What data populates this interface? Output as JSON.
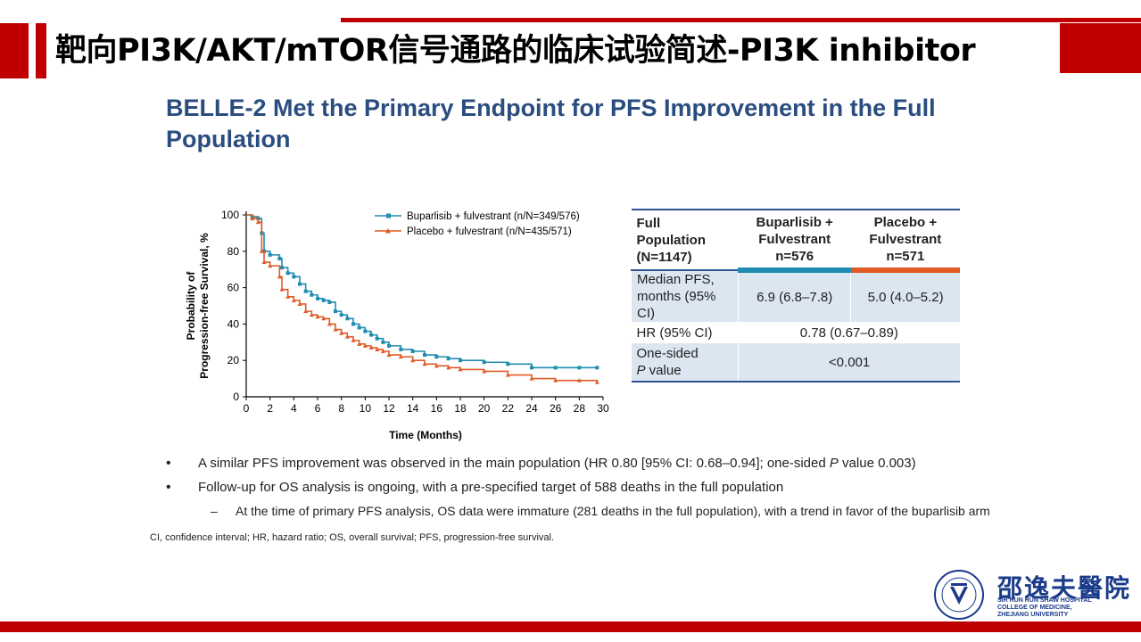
{
  "header": {
    "title": "靶向PI3K/AKT/mTOR信号通路的临床试验简述-PI3K inhibitor"
  },
  "slide": {
    "title": "BELLE-2 Met the Primary Endpoint for PFS Improvement in the Full Population"
  },
  "colors": {
    "brand_red": "#c00000",
    "title_blue": "#2a4d7f",
    "buparlisib": "#1f8db0",
    "placebo": "#e05a26",
    "table_row_blue": "#dce6f1"
  },
  "chart_data": {
    "type": "line",
    "xlabel": "Time (Months)",
    "ylabel_line1": "Probability of",
    "ylabel_line2": "Progression-free Survival, %",
    "xlim": [
      0,
      30
    ],
    "ylim": [
      0,
      100
    ],
    "xticks": [
      0,
      2,
      4,
      6,
      8,
      10,
      12,
      14,
      16,
      18,
      20,
      22,
      24,
      26,
      28,
      30
    ],
    "yticks": [
      0,
      20,
      40,
      60,
      80,
      100
    ],
    "legend_position": "top-right",
    "series": [
      {
        "name": "Buparlisib + fulvestrant (n/N=349/576)",
        "color": "#1f8db0",
        "x": [
          0,
          0.5,
          1,
          1.3,
          1.5,
          2,
          2.8,
          3,
          3.5,
          4,
          4.5,
          5,
          5.5,
          6,
          6.5,
          7,
          7.5,
          8,
          8.5,
          9,
          9.5,
          10,
          10.5,
          11,
          11.5,
          12,
          13,
          14,
          15,
          16,
          17,
          18,
          20,
          22,
          24,
          26,
          28,
          29.5
        ],
        "y": [
          100,
          99,
          98,
          90,
          80,
          78,
          76,
          71,
          68,
          66,
          62,
          58,
          56,
          54,
          53,
          52,
          47,
          45,
          43,
          40,
          38,
          36,
          34,
          32,
          30,
          28,
          26,
          25,
          23,
          22,
          21,
          20,
          19,
          18,
          16,
          16,
          16,
          16
        ]
      },
      {
        "name": "Placebo + fulvestrant (n/N=435/571)",
        "color": "#e05a26",
        "x": [
          0,
          0.5,
          1,
          1.3,
          1.5,
          2,
          2.8,
          3,
          3.5,
          4,
          4.5,
          5,
          5.5,
          6,
          6.5,
          7,
          7.5,
          8,
          8.5,
          9,
          9.5,
          10,
          10.5,
          11,
          11.5,
          12,
          13,
          14,
          15,
          16,
          17,
          18,
          20,
          22,
          24,
          26,
          28,
          29.5
        ],
        "y": [
          100,
          98,
          96,
          80,
          74,
          72,
          66,
          59,
          55,
          53,
          51,
          47,
          45,
          44,
          43,
          40,
          37,
          35,
          33,
          31,
          29,
          28,
          27,
          26,
          25,
          23,
          22,
          20,
          18,
          17,
          16,
          15,
          14,
          12,
          10,
          9,
          9,
          8
        ]
      }
    ]
  },
  "table": {
    "header": {
      "col1": "Full Population (N=1147)",
      "col2": "Buparlisib + Fulvestrant n=576",
      "col3": "Placebo + Fulvestrant n=571"
    },
    "rows": {
      "median_label": "Median PFS, months (95% CI)",
      "median_bup": "6.9 (6.8–7.8)",
      "median_pla": "5.0 (4.0–5.2)",
      "hr_label": "HR (95% CI)",
      "hr_value": "0.78 (0.67–0.89)",
      "p_label_a": "One-sided ",
      "p_label_b": "P",
      "p_label_c": " value",
      "p_value": "<0.001"
    }
  },
  "bullets": {
    "b1_a": "A similar PFS improvement was observed in the main population (HR 0.80 [95% CI: 0.68–0.94]; one-sided ",
    "b1_p": "P",
    "b1_b": " value 0.003)",
    "b2": "Follow-up for OS analysis is ongoing, with a pre-specified target of 588 deaths in the full population",
    "sub1": "At the time of primary PFS analysis, OS data were immature (281 deaths in the full population), with a trend in favor of the buparlisib arm",
    "bullet_char": "•",
    "dash_char": "–"
  },
  "footnote": "CI, confidence interval; HR, hazard ratio; OS, overall survival; PFS, progression-free survival.",
  "logo": {
    "cn": "邵逸夫醫院",
    "en1": "SIR RUN RUN SHAW HOSPITAL",
    "en2": "COLLEGE OF MEDICINE,",
    "en3": "ZHEJIANG UNIVERSITY"
  }
}
